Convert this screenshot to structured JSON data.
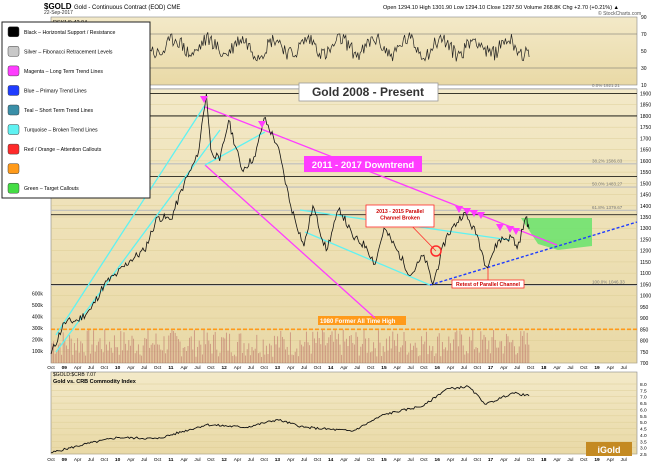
{
  "header": {
    "symbol": "$GOLD",
    "name": "Gold - Continuous Contract (EOD) CME",
    "date": "22-Sep-2017",
    "ohlc": "Open 1294.10  High 1301.90  Low 1294.10  Close 1297.50  Volume 268.8K  Chg +2.70 (+0.21%) ▲",
    "rsi_label": "RSI(14) 42.94",
    "watermark": "© StockCharts.com"
  },
  "annotations": {
    "title": "Gold 2008 - Present",
    "downtrend": "2011 - 2017 Downtrend",
    "parallel_broken": "2013 - 2015 Parallel Channel Broken",
    "retest": "Retest of Parallel Channel",
    "ath_1980": "1980 Former All Time High"
  },
  "legend": [
    {
      "label": "Black – Horizontal Support / Resistance",
      "color": "#000000"
    },
    {
      "label": "Silver – Fibonacci Retracement Levels",
      "color": "#c8c8c8"
    },
    {
      "label": "Magenta – Long Term Trend Lines",
      "color": "#ff3cff"
    },
    {
      "label": "Blue – Primary Trend Lines",
      "color": "#1f3cff"
    },
    {
      "label": "Teal – Short Term Trend Lines",
      "color": "#3a8fa8"
    },
    {
      "label": "Turquoise – Broken Trend Lines",
      "color": "#5ff2f2"
    },
    {
      "label": "Red / Orange – Attention Callouts",
      "color": "#ff2a2a"
    },
    {
      "label": "",
      "color": "#ff9a1a"
    },
    {
      "label": "Green – Target Callouts",
      "color": "#44dd44"
    }
  ],
  "chart_data": [
    {
      "type": "line",
      "title": "RSI(14)",
      "ylim": [
        10,
        90
      ],
      "y_ticks": [
        10,
        30,
        50,
        70,
        90
      ],
      "levels": [
        30,
        70
      ],
      "last_value": 42.94
    },
    {
      "type": "line",
      "title": "Gold 2008 - Present",
      "x_ticks": [
        "Oct",
        "09",
        "Apr",
        "Jul",
        "Oct",
        "10",
        "Apr",
        "Jul",
        "Oct",
        "11",
        "Apr",
        "Jul",
        "Oct",
        "12",
        "Apr",
        "Jul",
        "Oct",
        "13",
        "Apr",
        "Jul",
        "Oct",
        "14",
        "Apr",
        "Jul",
        "Oct",
        "15",
        "Apr",
        "Jul",
        "Oct",
        "16",
        "Apr",
        "Jul",
        "Oct",
        "17",
        "Apr",
        "Jul",
        "Oct",
        "18",
        "Apr",
        "Jul",
        "Oct",
        "19",
        "Apr",
        "Jul"
      ],
      "ylim": [
        700,
        1920
      ],
      "y_ticks": [
        700,
        750,
        800,
        850,
        900,
        950,
        1000,
        1050,
        1100,
        1150,
        1200,
        1250,
        1300,
        1350,
        1400,
        1450,
        1500,
        1550,
        1600,
        1650,
        1700,
        1750,
        1800,
        1850,
        1900
      ],
      "series": [
        {
          "values_by_date": [
            [
              "2008-10",
              740
            ],
            [
              "2009-01",
              880
            ],
            [
              "2009-04",
              890
            ],
            [
              "2009-07",
              940
            ],
            [
              "2009-10",
              1050
            ],
            [
              "2010-01",
              1100
            ],
            [
              "2010-04",
              1160
            ],
            [
              "2010-07",
              1200
            ],
            [
              "2010-10",
              1350
            ],
            [
              "2011-01",
              1340
            ],
            [
              "2011-04",
              1500
            ],
            [
              "2011-07",
              1620
            ],
            [
              "2011-09",
              1900
            ],
            [
              "2011-10",
              1650
            ],
            [
              "2011-12",
              1600
            ],
            [
              "2012-02",
              1780
            ],
            [
              "2012-05",
              1560
            ],
            [
              "2012-08",
              1620
            ],
            [
              "2012-10",
              1790
            ],
            [
              "2013-01",
              1670
            ],
            [
              "2013-04",
              1400
            ],
            [
              "2013-07",
              1220
            ],
            [
              "2013-09",
              1400
            ],
            [
              "2013-12",
              1200
            ],
            [
              "2014-03",
              1390
            ],
            [
              "2014-06",
              1260
            ],
            [
              "2014-09",
              1220
            ],
            [
              "2014-11",
              1140
            ],
            [
              "2015-01",
              1300
            ],
            [
              "2015-04",
              1200
            ],
            [
              "2015-07",
              1090
            ],
            [
              "2015-10",
              1180
            ],
            [
              "2015-12",
              1050
            ],
            [
              "2016-03",
              1260
            ],
            [
              "2016-07",
              1370
            ],
            [
              "2016-10",
              1270
            ],
            [
              "2016-12",
              1130
            ],
            [
              "2017-03",
              1250
            ],
            [
              "2017-06",
              1260
            ],
            [
              "2017-07",
              1210
            ],
            [
              "2017-09",
              1350
            ],
            [
              "2017-09-22",
              1297.5
            ]
          ]
        }
      ],
      "horizontal_lines": [
        1900,
        1800,
        1530,
        1360,
        1050
      ],
      "fibonacci": [
        {
          "label": "0.0%",
          "value": 1921.21
        },
        {
          "label": "38.2%",
          "value": 1586.83
        },
        {
          "label": "50.0%",
          "value": 1483.27
        },
        {
          "label": "61.8%",
          "value": 1379.67
        },
        {
          "label": "100.0%",
          "value": 1046.33
        }
      ],
      "ath_1980": 850,
      "volume_ticks": [
        "100k",
        "200k",
        "300k",
        "400k",
        "500k",
        "600k"
      ]
    },
    {
      "type": "line",
      "title": "Gold vs. CRB Commodity Index",
      "subtitle": "$GOLD:$CRB 7.07",
      "ylim": [
        2.5,
        8.0
      ],
      "y_ticks": [
        2.5,
        3.0,
        3.5,
        4.0,
        4.5,
        5.0,
        5.5,
        6.0,
        6.5,
        7.0,
        7.5,
        8.0
      ],
      "series": [
        {
          "values_by_date": [
            [
              "2008-10",
              2.6
            ],
            [
              "2009-06",
              3.3
            ],
            [
              "2010-01",
              3.8
            ],
            [
              "2010-10",
              3.7
            ],
            [
              "2011-09",
              4.8
            ],
            [
              "2012-06",
              4.6
            ],
            [
              "2013-01",
              5.2
            ],
            [
              "2013-07",
              4.6
            ],
            [
              "2014-06",
              4.3
            ],
            [
              "2015-01",
              5.6
            ],
            [
              "2015-10",
              6.3
            ],
            [
              "2016-03",
              7.6
            ],
            [
              "2016-08",
              7.8
            ],
            [
              "2016-12",
              6.4
            ],
            [
              "2017-06",
              7.3
            ],
            [
              "2017-09-22",
              7.07
            ]
          ]
        }
      ]
    }
  ]
}
